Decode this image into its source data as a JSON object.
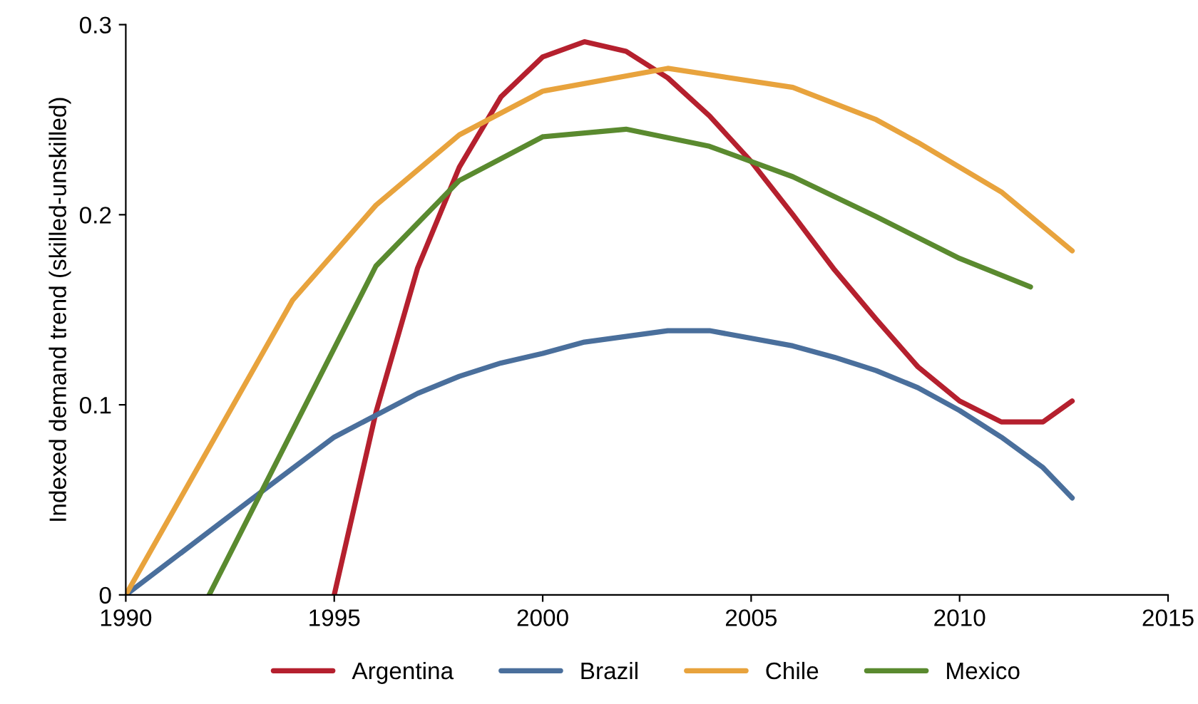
{
  "chart_data": {
    "type": "line",
    "ylabel": "Indexed demand trend (skilled-unskilled)",
    "xlim": [
      1990,
      2015
    ],
    "xticks": [
      1990,
      1995,
      2000,
      2005,
      2010,
      2015
    ],
    "ylim": [
      0,
      0.3
    ],
    "yticks": [
      {
        "value": 0,
        "label": "0"
      },
      0.1,
      0.2,
      0.3
    ],
    "grid": false,
    "legend": "bottom",
    "marker": "none",
    "line_style": "solid",
    "series": [
      {
        "name": "Argentina",
        "color": "#b5202e",
        "x": [
          1995,
          1996,
          1997,
          1998,
          1999,
          2000,
          2001,
          2002,
          2003,
          2004,
          2005,
          2006,
          2007,
          2008,
          2009,
          2010,
          2011,
          2012,
          2012.7
        ],
        "values": [
          0,
          0.096,
          0.172,
          0.225,
          0.262,
          0.283,
          0.291,
          0.286,
          0.272,
          0.252,
          0.228,
          0.2,
          0.171,
          0.145,
          0.12,
          0.102,
          0.091,
          0.091,
          0.102
        ]
      },
      {
        "name": "Brazil",
        "color": "#4a6f9c",
        "x": [
          1990,
          1993,
          1995,
          1997,
          1998,
          1999,
          2000,
          2001,
          2003,
          2004,
          2006,
          2007,
          2008,
          2009,
          2010,
          2011,
          2012,
          2012.7
        ],
        "values": [
          0,
          0.05,
          0.083,
          0.106,
          0.115,
          0.122,
          0.127,
          0.133,
          0.139,
          0.139,
          0.131,
          0.125,
          0.118,
          0.109,
          0.097,
          0.083,
          0.067,
          0.051
        ]
      },
      {
        "name": "Chile",
        "color": "#e8a33d",
        "x": [
          1990,
          1994,
          1996,
          1998,
          2000,
          2003,
          2006,
          2008,
          2009,
          2011,
          2012.7
        ],
        "values": [
          0,
          0.155,
          0.205,
          0.242,
          0.265,
          0.277,
          0.267,
          0.25,
          0.238,
          0.212,
          0.181
        ]
      },
      {
        "name": "Mexico",
        "color": "#5a8a2f",
        "x": [
          1992,
          1996,
          1998,
          2000,
          2002,
          2004,
          2006,
          2008,
          2010,
          2011.7
        ],
        "values": [
          0,
          0.173,
          0.218,
          0.241,
          0.245,
          0.236,
          0.22,
          0.199,
          0.177,
          0.162
        ]
      }
    ]
  }
}
